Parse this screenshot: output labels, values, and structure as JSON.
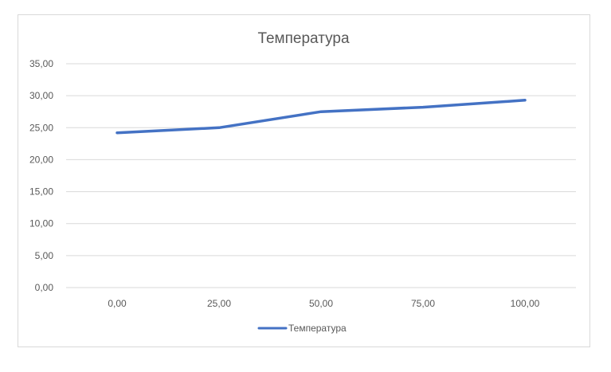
{
  "chart_data": {
    "type": "line",
    "title": "Температура",
    "xlabel": "",
    "ylabel": "",
    "x": [
      0,
      25,
      50,
      75,
      100
    ],
    "x_tick_labels": [
      "0,00",
      "25,00",
      "50,00",
      "75,00",
      "100,00"
    ],
    "y_tick_values": [
      0,
      5,
      10,
      15,
      20,
      25,
      30,
      35
    ],
    "y_tick_labels": [
      "0,00",
      "5,00",
      "10,00",
      "15,00",
      "20,00",
      "25,00",
      "30,00",
      "35,00"
    ],
    "ylim": [
      0,
      35
    ],
    "grid": "horizontal",
    "legend_position": "bottom",
    "series": [
      {
        "name": "Температура",
        "color": "#4472c4",
        "values": [
          24.2,
          25.0,
          27.5,
          28.2,
          29.3
        ]
      }
    ]
  }
}
